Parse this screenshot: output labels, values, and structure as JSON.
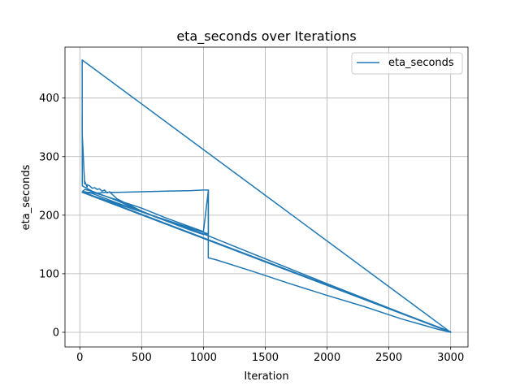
{
  "chart_data": {
    "type": "line",
    "title": "eta_seconds over Iterations",
    "xlabel": "Iteration",
    "ylabel": "eta_seconds",
    "xlim": [
      -120,
      3140
    ],
    "ylim": [
      -25,
      487
    ],
    "xticks": [
      0,
      500,
      1000,
      1500,
      2000,
      2500,
      3000
    ],
    "yticks": [
      0,
      100,
      200,
      300,
      400
    ],
    "grid": true,
    "legend_position": "top-right",
    "series": [
      {
        "name": "eta_seconds",
        "color": "#1f77b4",
        "x": [
          19,
          19,
          39,
          40,
          59,
          60,
          80,
          100,
          120,
          140,
          160,
          180,
          200,
          220,
          240,
          300,
          500,
          700,
          900,
          1000,
          1039,
          1039,
          1000,
          900,
          700,
          500,
          300,
          200,
          160,
          120,
          100,
          80,
          60,
          40,
          20,
          19,
          1040,
          1040,
          1000,
          700,
          500,
          300,
          200,
          120,
          100,
          80,
          60,
          40,
          20,
          19,
          3000,
          2900,
          2600,
          2300,
          2000,
          1700,
          1400,
          1100,
          1039,
          1039,
          1000,
          700,
          500,
          300,
          200,
          140,
          100,
          80,
          60,
          40,
          20,
          2999,
          3000,
          2000,
          1000,
          500,
          300,
          100,
          20,
          19,
          3000
        ],
        "y": [
          370,
          340,
          253,
          258,
          248,
          252,
          250,
          246,
          247,
          244,
          245,
          241,
          243,
          238,
          240,
          228,
          207,
          190,
          174,
          167,
          168,
          243,
          243,
          242,
          241,
          240,
          239,
          239,
          238,
          238,
          238,
          239,
          239,
          240,
          240,
          239,
          168,
          243,
          172,
          195,
          212,
          226,
          233,
          238,
          240,
          242,
          243,
          244,
          240,
          239,
          0,
          5,
          23,
          44,
          63,
          83,
          104,
          124,
          127,
          168,
          168,
          190,
          206,
          221,
          229,
          234,
          237,
          238,
          239,
          239,
          240,
          1,
          0,
          83,
          168,
          206,
          225,
          241,
          250,
          465,
          0
        ]
      }
    ]
  }
}
